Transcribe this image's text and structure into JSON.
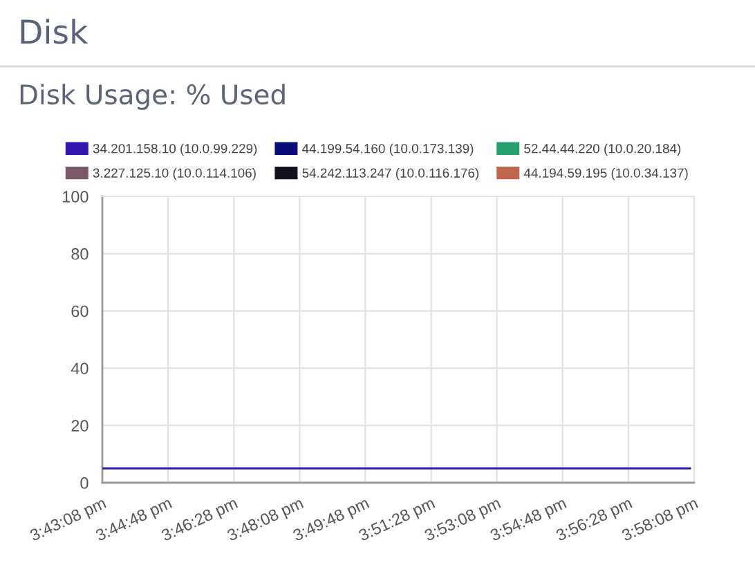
{
  "chart_data": {
    "type": "line",
    "title": "Disk",
    "subtitle": "Disk Usage: % Used",
    "x": [
      15.718889,
      15.967222
    ],
    "series": [
      {
        "name": "34.201.158.10 (10.0.99.229)",
        "color": "#3416b0",
        "values": [
          5,
          5
        ]
      },
      {
        "name": "44.199.54.160 (10.0.173.139)",
        "color": "#0b0b7a",
        "values": [
          null,
          null
        ]
      },
      {
        "name": "52.44.44.220 (10.0.20.184)",
        "color": "#27a06f",
        "values": [
          null,
          null
        ]
      },
      {
        "name": "3.227.125.10 (10.0.114.106)",
        "color": "#7e5868",
        "values": [
          null,
          null
        ]
      },
      {
        "name": "54.242.113.247 (10.0.116.176)",
        "color": "#14121f",
        "values": [
          null,
          null
        ]
      },
      {
        "name": "44.194.59.195 (10.0.34.137)",
        "color": "#c0664f",
        "values": [
          null,
          null
        ]
      }
    ],
    "xlim": [
      15.718889,
      15.968889
    ],
    "xticks": [
      {
        "value": 15.718889,
        "label": "3:43:08 pm"
      },
      {
        "value": 15.746667,
        "label": "3:44:48 pm"
      },
      {
        "value": 15.774444,
        "label": "3:46:28 pm"
      },
      {
        "value": 15.802222,
        "label": "3:48:08 pm"
      },
      {
        "value": 15.83,
        "label": "3:49:48 pm"
      },
      {
        "value": 15.857778,
        "label": "3:51:28 pm"
      },
      {
        "value": 15.885556,
        "label": "3:53:08 pm"
      },
      {
        "value": 15.913333,
        "label": "3:54:48 pm"
      },
      {
        "value": 15.941111,
        "label": "3:56:28 pm"
      },
      {
        "value": 15.968889,
        "label": "3:58:08 pm"
      }
    ],
    "ylim": [
      0,
      100
    ],
    "yticks": [
      0,
      20,
      40,
      60,
      80,
      100
    ],
    "grid": true,
    "legend": "top",
    "line_style": "solid"
  }
}
